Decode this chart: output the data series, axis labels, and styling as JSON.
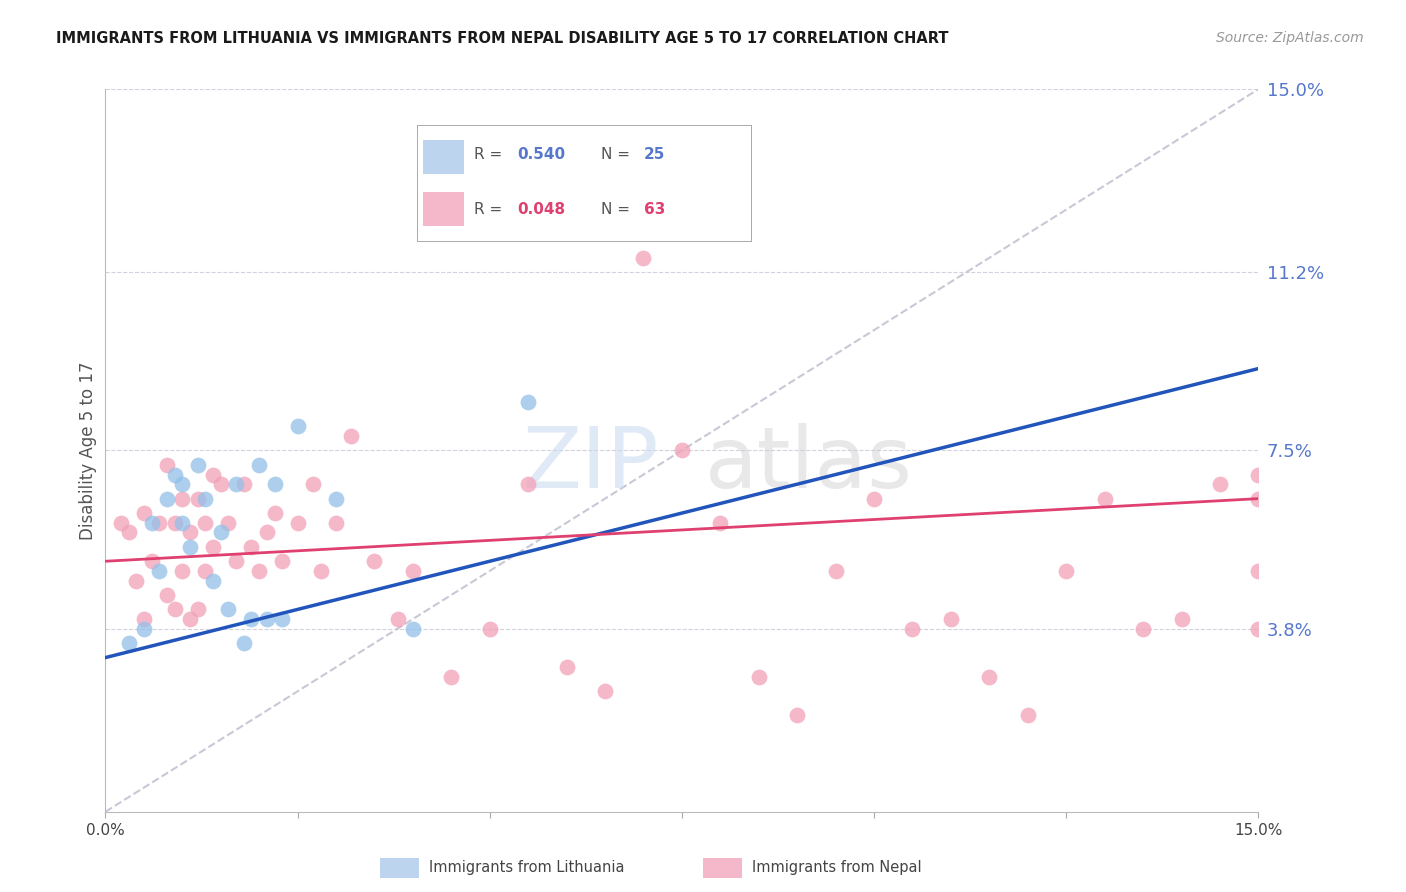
{
  "title": "IMMIGRANTS FROM LITHUANIA VS IMMIGRANTS FROM NEPAL DISABILITY AGE 5 TO 17 CORRELATION CHART",
  "source": "Source: ZipAtlas.com",
  "ylabel": "Disability Age 5 to 17",
  "xlim": [
    0,
    0.15
  ],
  "ylim": [
    0,
    0.15
  ],
  "r_lithuania": 0.54,
  "n_lithuania": 25,
  "r_nepal": 0.048,
  "n_nepal": 63,
  "color_lithuania": "#92C0E8",
  "color_nepal": "#F2A0B8",
  "line_color_lithuania": "#2255BB",
  "line_color_nepal": "#E04070",
  "diagonal_color": "#BBBBCC",
  "grid_color": "#CCCCDD",
  "legend_fill_lithuania": "#BDD4EE",
  "legend_fill_nepal": "#F5B8CB",
  "right_label_color": "#5577CC",
  "nepal_label_color": "#E04070",
  "lithuania_x": [
    0.003,
    0.005,
    0.006,
    0.007,
    0.008,
    0.009,
    0.01,
    0.01,
    0.011,
    0.012,
    0.013,
    0.014,
    0.015,
    0.016,
    0.017,
    0.018,
    0.019,
    0.02,
    0.021,
    0.022,
    0.023,
    0.025,
    0.03,
    0.04,
    0.055
  ],
  "lithuania_y": [
    0.035,
    0.038,
    0.06,
    0.05,
    0.065,
    0.07,
    0.068,
    0.06,
    0.055,
    0.072,
    0.065,
    0.048,
    0.058,
    0.042,
    0.068,
    0.035,
    0.04,
    0.072,
    0.04,
    0.068,
    0.04,
    0.08,
    0.065,
    0.038,
    0.085
  ],
  "nepal_x": [
    0.002,
    0.003,
    0.004,
    0.005,
    0.005,
    0.006,
    0.007,
    0.008,
    0.008,
    0.009,
    0.009,
    0.01,
    0.01,
    0.011,
    0.011,
    0.012,
    0.012,
    0.013,
    0.013,
    0.014,
    0.014,
    0.015,
    0.016,
    0.017,
    0.018,
    0.019,
    0.02,
    0.021,
    0.022,
    0.023,
    0.025,
    0.027,
    0.028,
    0.03,
    0.032,
    0.035,
    0.038,
    0.04,
    0.045,
    0.05,
    0.055,
    0.06,
    0.065,
    0.07,
    0.075,
    0.08,
    0.085,
    0.09,
    0.095,
    0.1,
    0.105,
    0.11,
    0.115,
    0.12,
    0.125,
    0.13,
    0.135,
    0.14,
    0.145,
    0.15,
    0.15,
    0.15,
    0.15
  ],
  "nepal_y": [
    0.06,
    0.058,
    0.048,
    0.062,
    0.04,
    0.052,
    0.06,
    0.045,
    0.072,
    0.06,
    0.042,
    0.065,
    0.05,
    0.058,
    0.04,
    0.065,
    0.042,
    0.06,
    0.05,
    0.055,
    0.07,
    0.068,
    0.06,
    0.052,
    0.068,
    0.055,
    0.05,
    0.058,
    0.062,
    0.052,
    0.06,
    0.068,
    0.05,
    0.06,
    0.078,
    0.052,
    0.04,
    0.05,
    0.028,
    0.038,
    0.068,
    0.03,
    0.025,
    0.115,
    0.075,
    0.06,
    0.028,
    0.02,
    0.05,
    0.065,
    0.038,
    0.04,
    0.028,
    0.02,
    0.05,
    0.065,
    0.038,
    0.04,
    0.068,
    0.05,
    0.065,
    0.038,
    0.07
  ],
  "lith_line_x0": 0.0,
  "lith_line_y0": 0.032,
  "lith_line_x1": 0.15,
  "lith_line_y1": 0.092,
  "nepal_line_x0": 0.0,
  "nepal_line_y0": 0.052,
  "nepal_line_x1": 0.15,
  "nepal_line_y1": 0.065
}
